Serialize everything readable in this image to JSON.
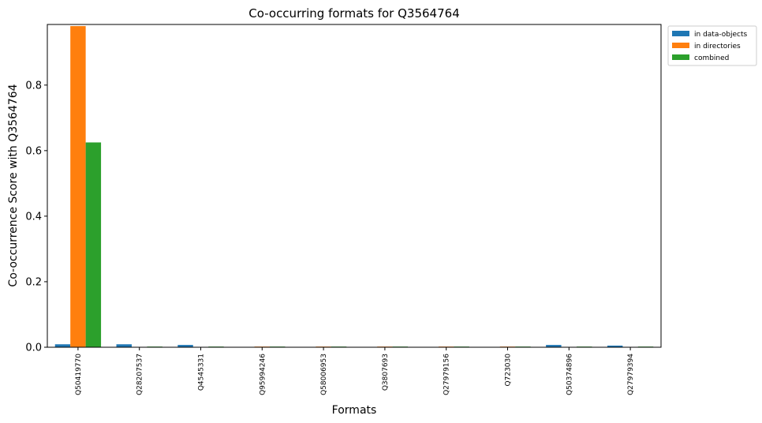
{
  "chart_data": {
    "type": "bar",
    "title": "Co-occurring formats for Q3564764",
    "xlabel": "Formats",
    "ylabel": "Co-occurrence Score with Q3564764",
    "categories": [
      "Q50419770",
      "Q28207537",
      "Q4545331",
      "Q95994246",
      "Q58006953",
      "Q3807693",
      "Q27979156",
      "Q723030",
      "Q50374896",
      "Q27979394"
    ],
    "series": [
      {
        "name": "in data-objects",
        "color": "#1f77b4",
        "values": [
          0.009,
          0.009,
          0.007,
          0.001,
          0.001,
          0.0,
          0.0,
          0.0,
          0.007,
          0.005
        ]
      },
      {
        "name": "in directories",
        "color": "#ff7f0e",
        "values": [
          0.98,
          0.0,
          0.0,
          0.002,
          0.002,
          0.002,
          0.002,
          0.002,
          0.0,
          0.0
        ]
      },
      {
        "name": "combined",
        "color": "#2ca02c",
        "values": [
          0.625,
          0.002,
          0.002,
          0.002,
          0.002,
          0.002,
          0.002,
          0.002,
          0.002,
          0.002
        ]
      }
    ],
    "ylim": [
      0,
      0.985
    ],
    "yticks": [
      "0.0",
      "0.2",
      "0.4",
      "0.6",
      "0.8"
    ],
    "grid": false,
    "legend_position": "outside-top-right"
  }
}
